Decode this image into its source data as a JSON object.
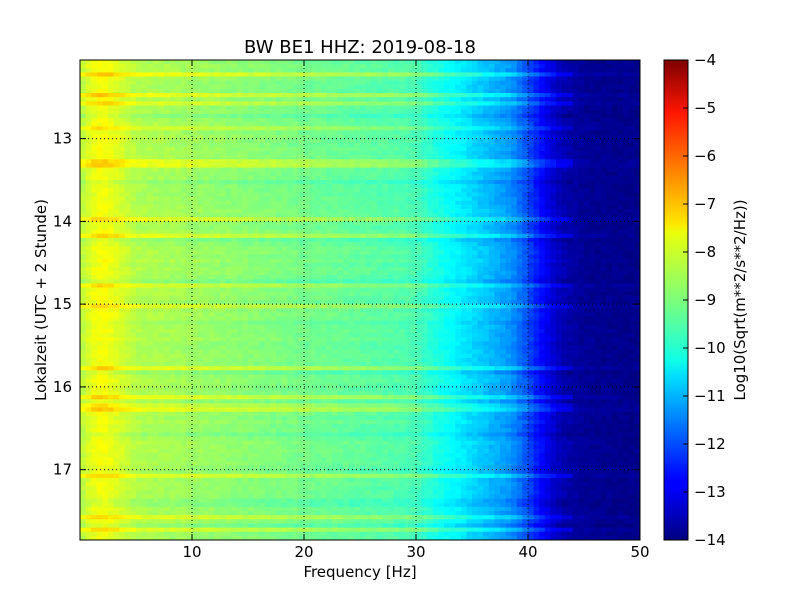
{
  "chart_data": {
    "type": "heatmap",
    "title": "BW BE1 HHZ: 2019-08-18",
    "xlabel": "Frequency [Hz]",
    "ylabel": "Lokalzeit (UTC + 2 Stunde)",
    "xlim": [
      0,
      50
    ],
    "ylim": [
      12.05,
      17.85
    ],
    "y_inverted": true,
    "x_ticks": [
      10,
      20,
      30,
      40,
      50
    ],
    "x_tick_labels": [
      "10",
      "20",
      "30",
      "40",
      "50"
    ],
    "y_ticks": [
      13,
      14,
      15,
      16,
      17
    ],
    "y_tick_labels": [
      "13",
      "14",
      "15",
      "16",
      "17"
    ],
    "grid": true,
    "colormap": "jet",
    "colorbar": {
      "label": "Log10(Sqrt(m**2/s**2/Hz))",
      "range": [
        -14,
        -4
      ],
      "ticks": [
        -4,
        -5,
        -6,
        -7,
        -8,
        -9,
        -10,
        -11,
        -12,
        -13,
        -14
      ],
      "tick_labels": [
        "−4",
        "−5",
        "−6",
        "−7",
        "−8",
        "−9",
        "−10",
        "−11",
        "−12",
        "−13",
        "−14"
      ]
    },
    "spectral_profile": {
      "frequency_hz": [
        0,
        1,
        2,
        3,
        5,
        10,
        15,
        20,
        25,
        30,
        31.5,
        33,
        35,
        37,
        38.5,
        40,
        41,
        42,
        43,
        45,
        50
      ],
      "log10_amplitude": [
        -8.5,
        -8.0,
        -7.8,
        -8.0,
        -8.5,
        -8.7,
        -8.9,
        -9.1,
        -9.3,
        -9.5,
        -9.9,
        -10.2,
        -10.6,
        -11.0,
        -11.3,
        -12.0,
        -12.6,
        -13.1,
        -13.5,
        -13.8,
        -13.9
      ]
    }
  }
}
